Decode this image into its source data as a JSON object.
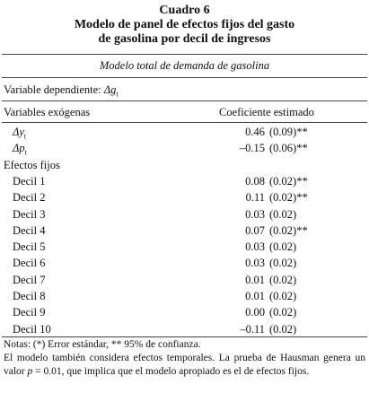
{
  "header": {
    "number": "Cuadro 6",
    "title_line1": "Modelo de panel de efectos fijos del gasto",
    "title_line2": "de gasolina por decil de ingresos"
  },
  "subtitle": "Modelo total de demanda de gasolina",
  "dependent": {
    "label": "Variable dependiente: ",
    "symbol": "Δg",
    "subscript": "t"
  },
  "table": {
    "columns": [
      "Variables exógenas",
      "Coeficiente estimado"
    ],
    "rows": [
      {
        "symbol": "Δy",
        "subscript": "t",
        "coef": "0.46",
        "se": "(0.09)",
        "sig": "**"
      },
      {
        "symbol": "Δp",
        "subscript": "t",
        "coef": "–0.15",
        "se": "(0.06)",
        "sig": "**"
      },
      {
        "section": "Efectos fijos"
      },
      {
        "label": "Decil 1",
        "coef": "0.08",
        "se": "(0.02)",
        "sig": "**"
      },
      {
        "label": "Decil 2",
        "coef": "0.11",
        "se": "(0.02)",
        "sig": "**"
      },
      {
        "label": "Decil 3",
        "coef": "0.03",
        "se": "(0.02)"
      },
      {
        "label": "Decil 4",
        "coef": "0.07",
        "se": "(0.02)",
        "sig": "**"
      },
      {
        "label": "Decil 5",
        "coef": "0.03",
        "se": "(0.02)"
      },
      {
        "label": "Decil 6",
        "coef": "0.03",
        "se": "(0.02)"
      },
      {
        "label": "Decil 7",
        "coef": "0.01",
        "se": "(0.02)"
      },
      {
        "label": "Decil 8",
        "coef": "0.01",
        "se": "(0.02)"
      },
      {
        "label": "Decil 9",
        "coef": "0.00",
        "se": "(0.02)"
      },
      {
        "label": "Decil 10",
        "coef": "–0.11",
        "se": "(0.02)"
      }
    ]
  },
  "notes": {
    "line1": "Notas: (*) Error estándar, ** 95% de confianza.",
    "before_p": "El modelo también considera efectos temporales. La prueba de Hausman genera un valor ",
    "p": "p",
    "after_p": " = 0.01, que implica que el modelo apropiado es el de efectos fijos."
  }
}
